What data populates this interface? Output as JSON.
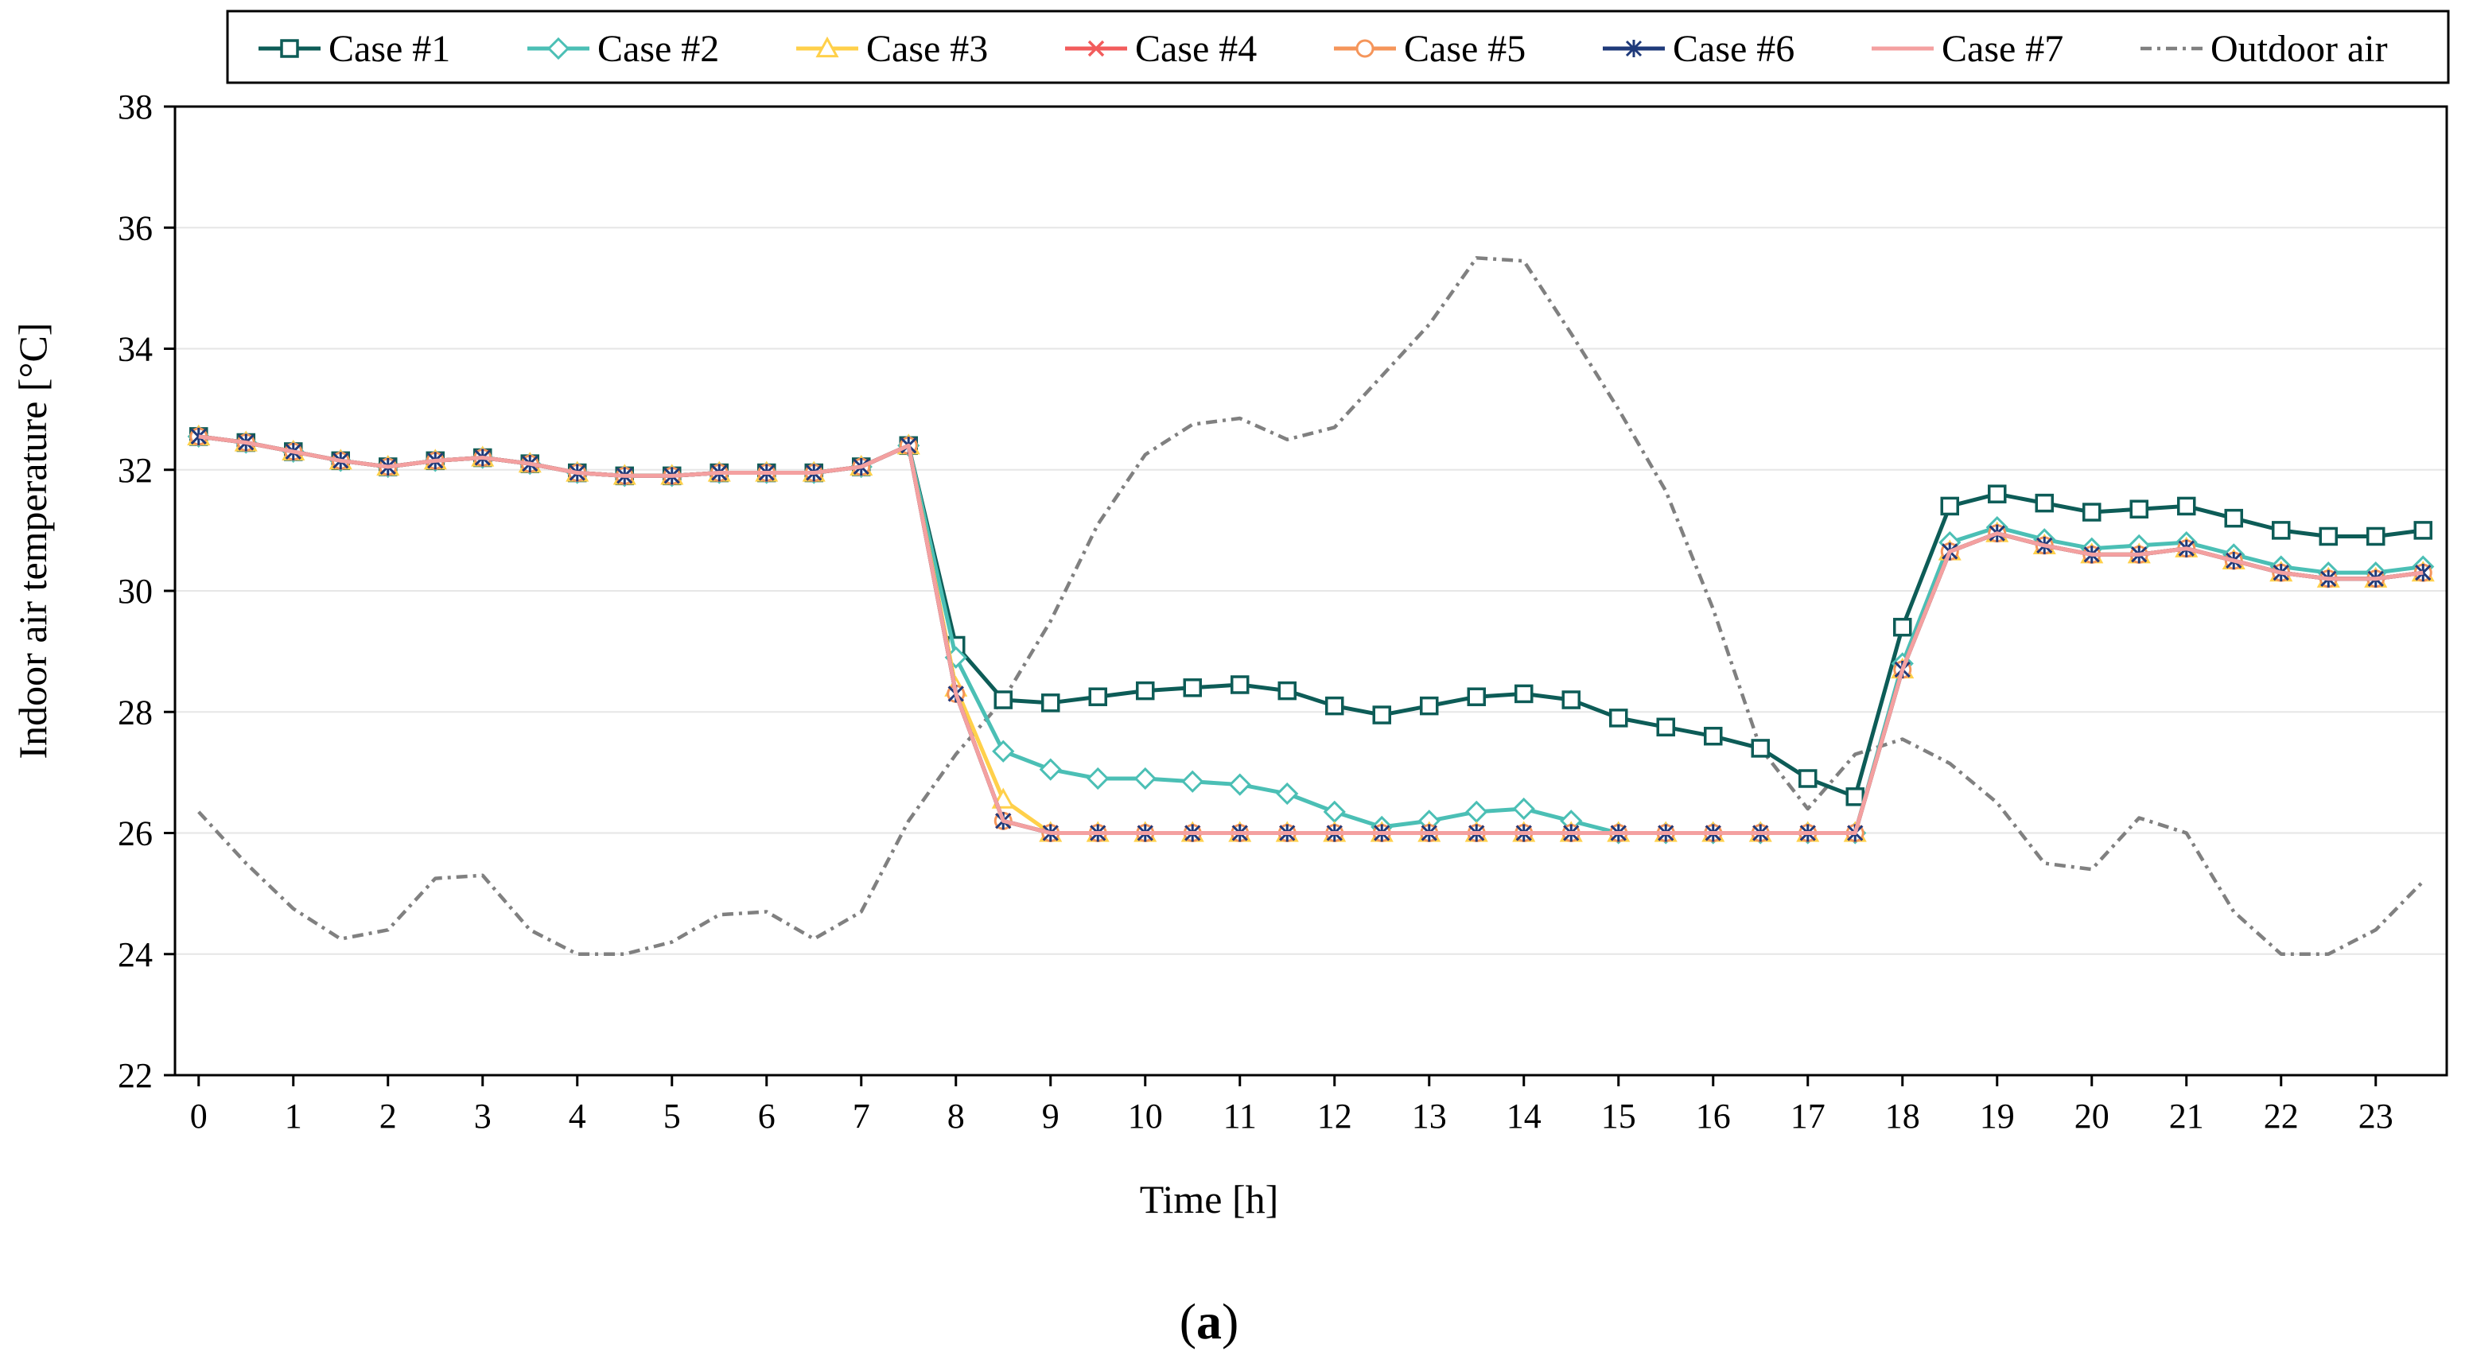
{
  "chart_data": {
    "type": "line",
    "xlabel": "Time [h]",
    "ylabel": "Indoor air temperature [°C]",
    "xlim": [
      -0.25,
      23.75
    ],
    "ylim": [
      22,
      38
    ],
    "x_ticks": [
      "0",
      "1",
      "2",
      "3",
      "4",
      "5",
      "6",
      "7",
      "8",
      "9",
      "10",
      "11",
      "12",
      "13",
      "14",
      "15",
      "16",
      "17",
      "18",
      "19",
      "20",
      "21",
      "22",
      "23"
    ],
    "y_ticks": [
      "22",
      "24",
      "26",
      "28",
      "30",
      "32",
      "34",
      "36",
      "38"
    ],
    "x": [
      0,
      0.5,
      1,
      1.5,
      2,
      2.5,
      3,
      3.5,
      4,
      4.5,
      5,
      5.5,
      6,
      6.5,
      7,
      7.5,
      8,
      8.5,
      9,
      9.5,
      10,
      10.5,
      11,
      11.5,
      12,
      12.5,
      13,
      13.5,
      14,
      14.5,
      15,
      15.5,
      16,
      16.5,
      17,
      17.5,
      18,
      18.5,
      19,
      19.5,
      20,
      20.5,
      21,
      21.5,
      22,
      22.5,
      23,
      23.5
    ],
    "series": [
      {
        "name": "Outdoor air",
        "color": "#808080",
        "marker": "none",
        "dash": "dashdot",
        "values": [
          26.35,
          25.5,
          24.75,
          24.25,
          24.4,
          25.25,
          25.3,
          24.4,
          24.0,
          24.0,
          24.2,
          24.65,
          24.7,
          24.25,
          24.7,
          26.2,
          27.3,
          28.2,
          29.5,
          31.1,
          32.25,
          32.75,
          32.85,
          32.5,
          32.7,
          33.55,
          34.4,
          35.5,
          35.45,
          34.25,
          33.0,
          31.65,
          29.7,
          27.4,
          26.4,
          27.3,
          27.55,
          27.15,
          26.5,
          25.5,
          25.4,
          26.25,
          26.0,
          24.7,
          24.0,
          24.0,
          24.4,
          25.2
        ]
      },
      {
        "name": "Case #1",
        "color": "#0D5C57",
        "marker": "square",
        "values": [
          32.55,
          32.45,
          32.3,
          32.15,
          32.05,
          32.15,
          32.2,
          32.1,
          31.95,
          31.9,
          31.9,
          31.95,
          31.95,
          31.95,
          32.05,
          32.4,
          29.1,
          28.2,
          28.15,
          28.25,
          28.35,
          28.4,
          28.45,
          28.35,
          28.1,
          27.95,
          28.1,
          28.25,
          28.3,
          28.2,
          27.9,
          27.75,
          27.6,
          27.4,
          26.9,
          26.6,
          29.4,
          31.4,
          31.6,
          31.45,
          31.3,
          31.35,
          31.4,
          31.2,
          31.0,
          30.9,
          30.9,
          31.0
        ]
      },
      {
        "name": "Case #2",
        "color": "#4BBFB5",
        "marker": "diamond",
        "values": [
          32.55,
          32.45,
          32.3,
          32.15,
          32.05,
          32.15,
          32.2,
          32.1,
          31.95,
          31.9,
          31.9,
          31.95,
          31.95,
          31.95,
          32.05,
          32.4,
          28.9,
          27.35,
          27.05,
          26.9,
          26.9,
          26.85,
          26.8,
          26.65,
          26.35,
          26.1,
          26.2,
          26.35,
          26.4,
          26.2,
          26.0,
          26.0,
          26.0,
          26.0,
          26.0,
          26.0,
          28.8,
          30.8,
          31.05,
          30.85,
          30.7,
          30.75,
          30.8,
          30.6,
          30.4,
          30.3,
          30.3,
          30.4
        ]
      },
      {
        "name": "Case #3",
        "color": "#FFD04A",
        "marker": "triangle",
        "values": [
          32.55,
          32.45,
          32.3,
          32.15,
          32.05,
          32.15,
          32.2,
          32.1,
          31.95,
          31.9,
          31.9,
          31.95,
          31.95,
          31.95,
          32.05,
          32.4,
          28.4,
          26.55,
          26.0,
          26.0,
          26.0,
          26.0,
          26.0,
          26.0,
          26.0,
          26.0,
          26.0,
          26.0,
          26.0,
          26.0,
          26.0,
          26.0,
          26.0,
          26.0,
          26.0,
          26.0,
          28.7,
          30.65,
          30.95,
          30.75,
          30.6,
          30.6,
          30.7,
          30.5,
          30.3,
          30.2,
          30.2,
          30.3
        ]
      },
      {
        "name": "Case #4",
        "color": "#F25C5C",
        "marker": "x",
        "values": [
          32.55,
          32.45,
          32.3,
          32.15,
          32.05,
          32.15,
          32.2,
          32.1,
          31.95,
          31.9,
          31.9,
          31.95,
          31.95,
          31.95,
          32.05,
          32.4,
          28.3,
          26.2,
          26.0,
          26.0,
          26.0,
          26.0,
          26.0,
          26.0,
          26.0,
          26.0,
          26.0,
          26.0,
          26.0,
          26.0,
          26.0,
          26.0,
          26.0,
          26.0,
          26.0,
          26.0,
          28.7,
          30.65,
          30.95,
          30.75,
          30.6,
          30.6,
          30.7,
          30.5,
          30.3,
          30.2,
          30.2,
          30.3
        ]
      },
      {
        "name": "Case #5",
        "color": "#F5955A",
        "marker": "circle",
        "values": [
          32.55,
          32.45,
          32.3,
          32.15,
          32.05,
          32.15,
          32.2,
          32.1,
          31.95,
          31.9,
          31.9,
          31.95,
          31.95,
          31.95,
          32.05,
          32.4,
          28.3,
          26.2,
          26.0,
          26.0,
          26.0,
          26.0,
          26.0,
          26.0,
          26.0,
          26.0,
          26.0,
          26.0,
          26.0,
          26.0,
          26.0,
          26.0,
          26.0,
          26.0,
          26.0,
          26.0,
          28.7,
          30.65,
          30.95,
          30.75,
          30.6,
          30.6,
          30.7,
          30.5,
          30.3,
          30.2,
          30.2,
          30.3
        ]
      },
      {
        "name": "Case #6",
        "color": "#1F3A7A",
        "marker": "star",
        "values": [
          32.55,
          32.45,
          32.3,
          32.15,
          32.05,
          32.15,
          32.2,
          32.1,
          31.95,
          31.9,
          31.9,
          31.95,
          31.95,
          31.95,
          32.05,
          32.4,
          28.3,
          26.2,
          26.0,
          26.0,
          26.0,
          26.0,
          26.0,
          26.0,
          26.0,
          26.0,
          26.0,
          26.0,
          26.0,
          26.0,
          26.0,
          26.0,
          26.0,
          26.0,
          26.0,
          26.0,
          28.7,
          30.65,
          30.95,
          30.75,
          30.6,
          30.6,
          30.7,
          30.5,
          30.3,
          30.2,
          30.2,
          30.3
        ]
      },
      {
        "name": "Case #7",
        "color": "#F4A0A0",
        "marker": "none",
        "values": [
          32.55,
          32.45,
          32.3,
          32.15,
          32.05,
          32.15,
          32.2,
          32.1,
          31.95,
          31.9,
          31.9,
          31.95,
          31.95,
          31.95,
          32.05,
          32.4,
          28.3,
          26.2,
          26.0,
          26.0,
          26.0,
          26.0,
          26.0,
          26.0,
          26.0,
          26.0,
          26.0,
          26.0,
          26.0,
          26.0,
          26.0,
          26.0,
          26.0,
          26.0,
          26.0,
          26.0,
          28.7,
          30.65,
          30.95,
          30.75,
          30.6,
          30.6,
          30.7,
          30.5,
          30.3,
          30.2,
          30.2,
          30.3
        ]
      }
    ],
    "legend": [
      "Case #1",
      "Case #2",
      "Case #3",
      "Case #4",
      "Case #5",
      "Case #6",
      "Case #7",
      "Outdoor air"
    ],
    "legend_position": "top",
    "grid": true
  },
  "caption": {
    "open": "(",
    "letter": "a",
    "close": ")"
  }
}
